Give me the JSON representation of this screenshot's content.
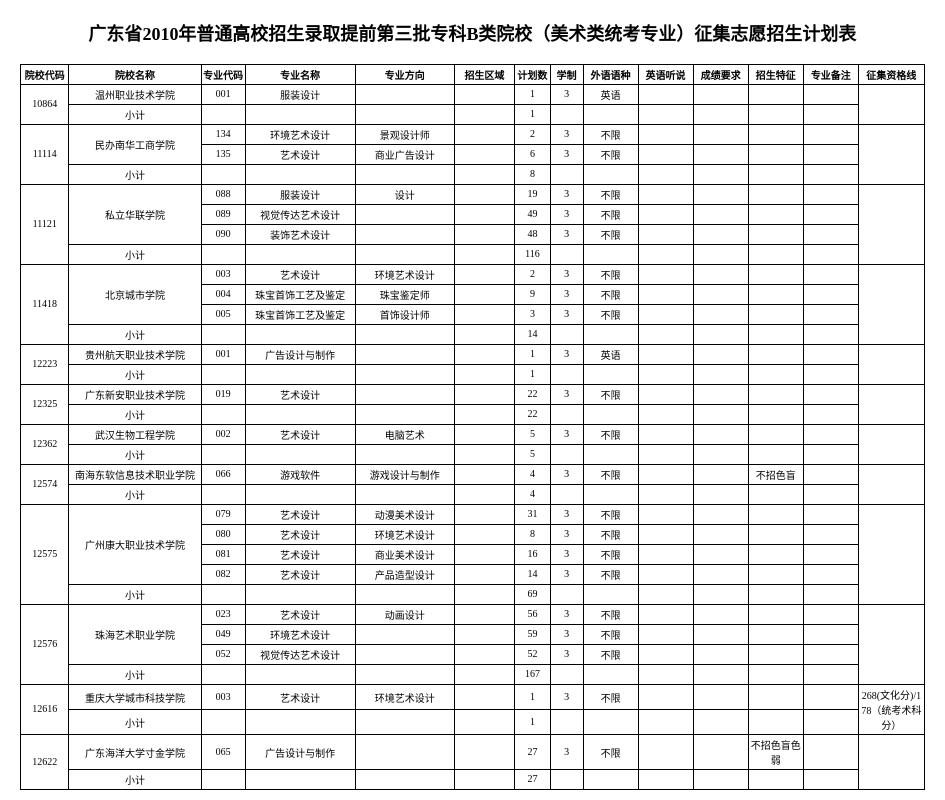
{
  "title": "广东省2010年普通高校招生录取提前第三批专科B类院校（美术类统考专业）征集志愿招生计划表",
  "headers": {
    "c0": "院校代码",
    "c1": "院校名称",
    "c2": "专业代码",
    "c3": "专业名称",
    "c4": "专业方向",
    "c5": "招生区域",
    "c6": "计划数",
    "c7": "学制",
    "c8": "外语语种",
    "c9": "英语听说",
    "c10": "成绩要求",
    "c11": "招生特征",
    "c12": "专业备注",
    "c13": "征集资格线"
  },
  "subtotal_label": "小计",
  "schools": [
    {
      "code": "10864",
      "name": "温州职业技术学院",
      "rows": [
        {
          "mcode": "001",
          "major": "服装设计",
          "dir": "",
          "plan": "1",
          "len": "3",
          "lang": "英语",
          "feat": ""
        }
      ],
      "subtotal": "1",
      "line": ""
    },
    {
      "code": "11114",
      "name": "民办南华工商学院",
      "rows": [
        {
          "mcode": "134",
          "major": "环境艺术设计",
          "dir": "景观设计师",
          "plan": "2",
          "len": "3",
          "lang": "不限",
          "feat": ""
        },
        {
          "mcode": "135",
          "major": "艺术设计",
          "dir": "商业广告设计",
          "plan": "6",
          "len": "3",
          "lang": "不限",
          "feat": ""
        }
      ],
      "subtotal": "8",
      "line": ""
    },
    {
      "code": "11121",
      "name": "私立华联学院",
      "rows": [
        {
          "mcode": "088",
          "major": "服装设计",
          "dir": "设计",
          "plan": "19",
          "len": "3",
          "lang": "不限",
          "feat": ""
        },
        {
          "mcode": "089",
          "major": "视觉传达艺术设计",
          "dir": "",
          "plan": "49",
          "len": "3",
          "lang": "不限",
          "feat": ""
        },
        {
          "mcode": "090",
          "major": "装饰艺术设计",
          "dir": "",
          "plan": "48",
          "len": "3",
          "lang": "不限",
          "feat": ""
        }
      ],
      "subtotal": "116",
      "line": ""
    },
    {
      "code": "11418",
      "name": "北京城市学院",
      "rows": [
        {
          "mcode": "003",
          "major": "艺术设计",
          "dir": "环境艺术设计",
          "plan": "2",
          "len": "3",
          "lang": "不限",
          "feat": ""
        },
        {
          "mcode": "004",
          "major": "珠宝首饰工艺及鉴定",
          "dir": "珠宝鉴定师",
          "plan": "9",
          "len": "3",
          "lang": "不限",
          "feat": ""
        },
        {
          "mcode": "005",
          "major": "珠宝首饰工艺及鉴定",
          "dir": "首饰设计师",
          "plan": "3",
          "len": "3",
          "lang": "不限",
          "feat": ""
        }
      ],
      "subtotal": "14",
      "line": ""
    },
    {
      "code": "12223",
      "name": "贵州航天职业技术学院",
      "rows": [
        {
          "mcode": "001",
          "major": "广告设计与制作",
          "dir": "",
          "plan": "1",
          "len": "3",
          "lang": "英语",
          "feat": ""
        }
      ],
      "subtotal": "1",
      "line": ""
    },
    {
      "code": "12325",
      "name": "广东新安职业技术学院",
      "rows": [
        {
          "mcode": "019",
          "major": "艺术设计",
          "dir": "",
          "plan": "22",
          "len": "3",
          "lang": "不限",
          "feat": ""
        }
      ],
      "subtotal": "22",
      "line": ""
    },
    {
      "code": "12362",
      "name": "武汉生物工程学院",
      "rows": [
        {
          "mcode": "002",
          "major": "艺术设计",
          "dir": "电脑艺术",
          "plan": "5",
          "len": "3",
          "lang": "不限",
          "feat": ""
        }
      ],
      "subtotal": "5",
      "line": ""
    },
    {
      "code": "12574",
      "name": "南海东软信息技术职业学院",
      "rows": [
        {
          "mcode": "066",
          "major": "游戏软件",
          "dir": "游戏设计与制作",
          "plan": "4",
          "len": "3",
          "lang": "不限",
          "feat": "不招色盲"
        }
      ],
      "subtotal": "4",
      "line": ""
    },
    {
      "code": "12575",
      "name": "广州康大职业技术学院",
      "rows": [
        {
          "mcode": "079",
          "major": "艺术设计",
          "dir": "动漫美术设计",
          "plan": "31",
          "len": "3",
          "lang": "不限",
          "feat": ""
        },
        {
          "mcode": "080",
          "major": "艺术设计",
          "dir": "环境艺术设计",
          "plan": "8",
          "len": "3",
          "lang": "不限",
          "feat": ""
        },
        {
          "mcode": "081",
          "major": "艺术设计",
          "dir": "商业美术设计",
          "plan": "16",
          "len": "3",
          "lang": "不限",
          "feat": ""
        },
        {
          "mcode": "082",
          "major": "艺术设计",
          "dir": "产品造型设计",
          "plan": "14",
          "len": "3",
          "lang": "不限",
          "feat": ""
        }
      ],
      "subtotal": "69",
      "line": ""
    },
    {
      "code": "12576",
      "name": "珠海艺术职业学院",
      "rows": [
        {
          "mcode": "023",
          "major": "艺术设计",
          "dir": "动画设计",
          "plan": "56",
          "len": "3",
          "lang": "不限",
          "feat": ""
        },
        {
          "mcode": "049",
          "major": "环境艺术设计",
          "dir": "",
          "plan": "59",
          "len": "3",
          "lang": "不限",
          "feat": ""
        },
        {
          "mcode": "052",
          "major": "视觉传达艺术设计",
          "dir": "",
          "plan": "52",
          "len": "3",
          "lang": "不限",
          "feat": ""
        }
      ],
      "subtotal": "167",
      "line": ""
    },
    {
      "code": "12616",
      "name": "重庆大学城市科技学院",
      "rows": [
        {
          "mcode": "003",
          "major": "艺术设计",
          "dir": "环境艺术设计",
          "plan": "1",
          "len": "3",
          "lang": "不限",
          "feat": ""
        }
      ],
      "subtotal": "1",
      "line": "268(文化分)/178（统考术科分）"
    },
    {
      "code": "12622",
      "name": "广东海洋大学寸金学院",
      "rows": [
        {
          "mcode": "065",
          "major": "广告设计与制作",
          "dir": "",
          "plan": "27",
          "len": "3",
          "lang": "不限",
          "feat": "不招色盲色弱"
        }
      ],
      "subtotal": "27",
      "line": ""
    }
  ]
}
